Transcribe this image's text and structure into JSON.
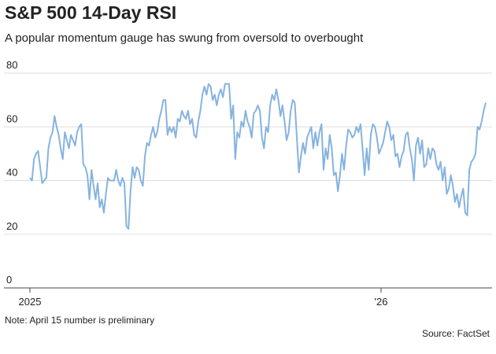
{
  "chart_data": {
    "type": "line",
    "title": "S&P 500 14-Day RSI",
    "subtitle": "A popular momentum gauge has swung from oversold to overbought",
    "note": "Note: April 15 number is preliminary",
    "source": "Source: FactSet",
    "ylim": [
      0,
      80
    ],
    "yticks": [
      0,
      20,
      40,
      60,
      80
    ],
    "grid": true,
    "color": "#86b3e0",
    "categories": [
      "2025",
      null,
      null,
      null,
      null,
      null,
      null,
      null,
      null,
      null,
      null,
      null,
      null,
      null,
      null,
      null,
      null,
      null,
      null,
      null,
      null,
      null,
      null,
      null,
      null,
      null,
      null,
      null,
      null,
      null,
      null,
      null,
      null,
      null,
      null,
      null,
      null,
      null,
      null,
      null,
      null,
      null,
      null,
      null,
      null,
      null,
      null,
      null,
      null,
      null,
      null,
      null,
      null,
      null,
      null,
      null,
      null,
      null,
      null,
      null,
      null,
      null,
      null,
      null,
      null,
      null,
      null,
      null,
      null,
      null,
      null,
      null,
      null,
      null,
      null,
      null,
      null,
      null,
      null,
      null,
      null,
      null,
      null,
      null,
      null,
      null,
      null,
      null,
      null,
      null,
      null,
      null,
      null,
      null,
      null,
      null,
      null,
      null,
      null,
      null,
      null,
      null,
      null,
      null,
      null,
      null,
      null,
      null,
      null,
      null,
      null,
      null,
      null,
      null,
      null,
      null,
      null,
      null,
      null,
      null,
      null,
      null,
      null,
      null,
      null,
      null,
      null,
      null,
      null,
      null,
      null,
      null,
      null,
      null,
      null,
      null,
      null,
      null,
      null,
      null,
      null,
      null,
      null,
      null,
      null,
      null,
      null,
      null,
      null,
      null,
      null,
      null,
      null,
      null,
      null,
      null,
      null,
      null,
      null,
      null,
      null,
      null,
      null,
      null,
      null,
      null,
      null,
      null,
      null,
      null,
      null,
      "'26",
      null,
      null,
      null,
      null,
      null,
      null,
      null,
      null,
      null,
      null,
      null,
      null,
      null,
      null,
      null,
      null,
      null,
      null,
      null,
      null,
      null,
      null,
      null,
      null,
      null,
      null,
      null,
      null,
      null,
      null,
      null,
      null,
      null,
      null,
      null,
      null,
      null,
      null,
      null,
      null,
      null,
      null,
      null,
      null,
      null,
      null,
      null,
      null,
      null,
      null,
      null
    ],
    "values": [
      41,
      40,
      48,
      50,
      51,
      45,
      39,
      40,
      41,
      52,
      56,
      58,
      64,
      60,
      57,
      52,
      48,
      58,
      55,
      52,
      57,
      55,
      53,
      58,
      60,
      61,
      46,
      45,
      42,
      33,
      44,
      38,
      33,
      39,
      30,
      33,
      28,
      35,
      41,
      40,
      40,
      40,
      44,
      40,
      38,
      41,
      39,
      23,
      22,
      36,
      45,
      41,
      45,
      44,
      40,
      38,
      49,
      54,
      53,
      57,
      60,
      56,
      58,
      63,
      66,
      70,
      70,
      57,
      60,
      58,
      60,
      56,
      63,
      62,
      66,
      64,
      63,
      66,
      61,
      63,
      57,
      56,
      62,
      66,
      72,
      75,
      72,
      76,
      75,
      70,
      72,
      68,
      72,
      74,
      71,
      76,
      76,
      76,
      63,
      68,
      48,
      58,
      56,
      62,
      60,
      66,
      62,
      60,
      56,
      65,
      66,
      68,
      66,
      56,
      52,
      60,
      58,
      68,
      72,
      70,
      74,
      70,
      64,
      68,
      62,
      55,
      58,
      66,
      70,
      69,
      56,
      43,
      49,
      54,
      50,
      56,
      58,
      60,
      52,
      58,
      53,
      58,
      61,
      44,
      52,
      48,
      57,
      52,
      42,
      43,
      36,
      42,
      50,
      44,
      53,
      59,
      58,
      56,
      57,
      60,
      58,
      61,
      52,
      42,
      52,
      44,
      57,
      61,
      60,
      56,
      50,
      52,
      54,
      58,
      62,
      60,
      55,
      57,
      49,
      50,
      45,
      49,
      51,
      57,
      58,
      52,
      48,
      40,
      53,
      56,
      50,
      55,
      45,
      46,
      52,
      48,
      52,
      51,
      46,
      44,
      47,
      40,
      45,
      35,
      37,
      42,
      38,
      32,
      35,
      30,
      34,
      37,
      28,
      27,
      44,
      47,
      48,
      50,
      60,
      59,
      62,
      66,
      69
    ]
  }
}
